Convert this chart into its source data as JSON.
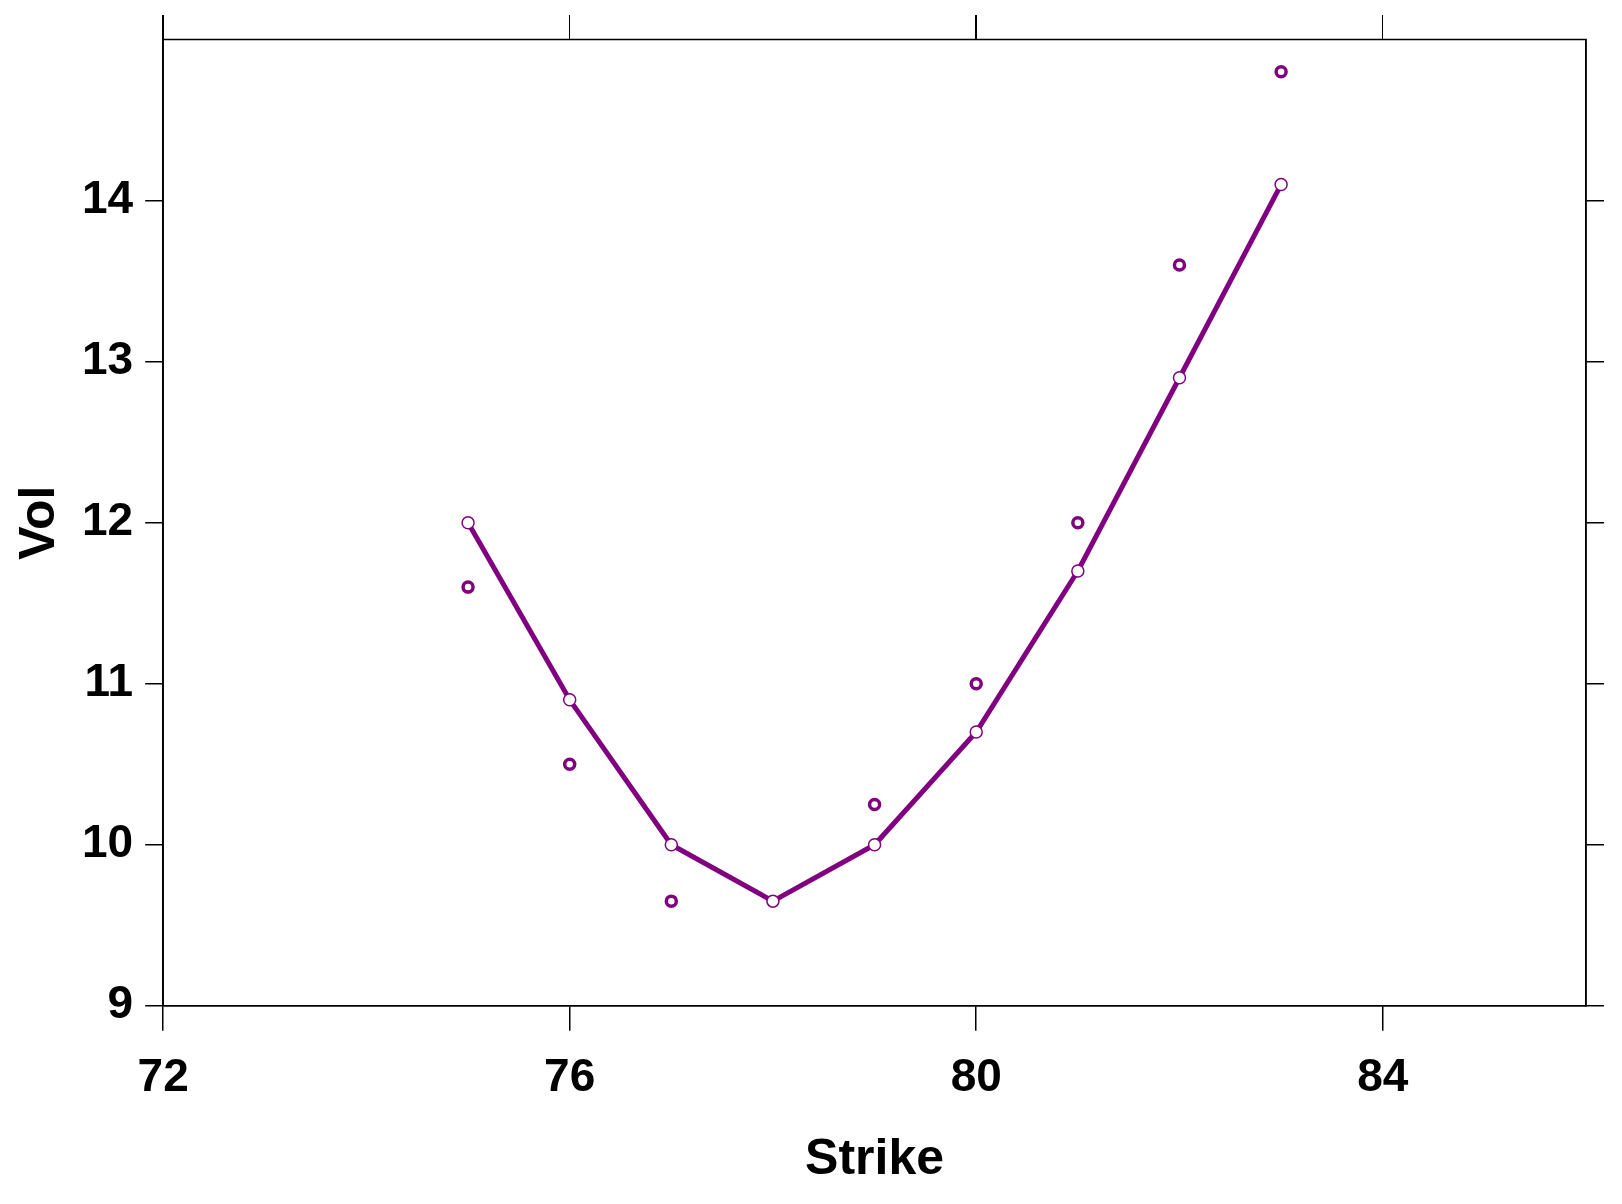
{
  "chart_data": {
    "type": "line",
    "xlabel": "Strike",
    "ylabel": "Vol",
    "x": [
      75,
      76,
      77,
      78,
      79,
      80,
      81,
      82,
      83
    ],
    "marker": "circle",
    "series": [
      {
        "type": "line",
        "color": "#800080",
        "values": [
          12.0,
          10.9,
          10.0,
          9.65,
          10.0,
          10.7,
          11.7,
          12.9,
          14.1
        ]
      },
      {
        "type": "scatter",
        "color": "#800080",
        "values": [
          11.6,
          10.5,
          9.65,
          null,
          10.25,
          11.0,
          12.0,
          13.6,
          14.8
        ]
      }
    ],
    "xlim": [
      72,
      86
    ],
    "xticks": [
      72,
      76,
      80,
      84
    ],
    "ylim": [
      9,
      15
    ],
    "yticks": [
      9,
      10,
      11,
      12,
      13,
      14
    ]
  }
}
